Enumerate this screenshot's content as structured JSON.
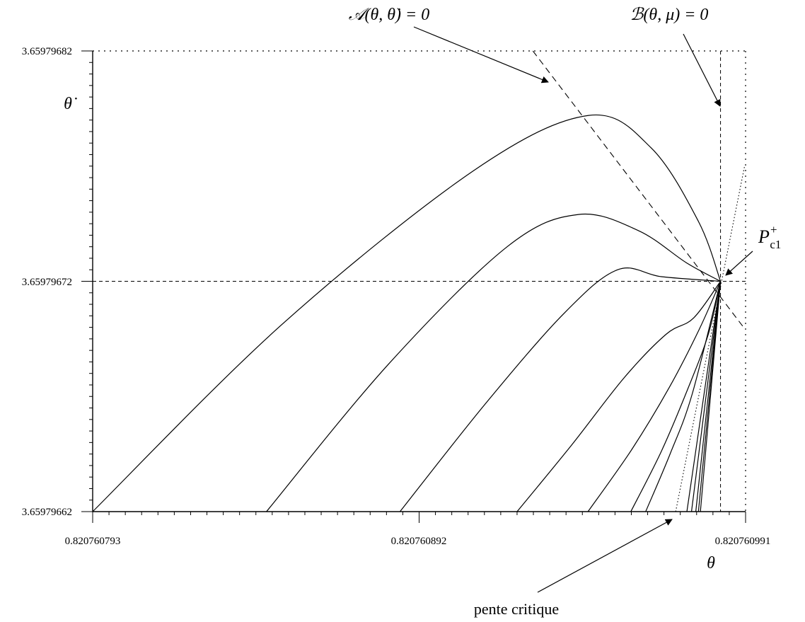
{
  "chart_data": {
    "type": "line",
    "xlabel": "θ",
    "ylabel": "θ̇",
    "xlim": [
      0.820760793,
      0.820760991
    ],
    "ylim": [
      3.65979662,
      3.65979682
    ],
    "x_ticks": [
      "0.820760793",
      "0.820760892",
      "0.820760991"
    ],
    "y_ticks": [
      "3.65979662",
      "3.65979672",
      "3.65979682"
    ],
    "grid": false,
    "critical_point": {
      "label_main": "P",
      "label_sup": "+",
      "label_sub": "c1",
      "x": 0.8207609834,
      "y": 3.65979672
    },
    "reference_lines": [
      {
        "name": "horizontal-at-critical",
        "y": 3.65979672,
        "style": "dashed"
      },
      {
        "name": "B-vertical",
        "x": 0.8207609834,
        "style": "dashed"
      }
    ],
    "annotations": {
      "A": "𝒜(θ, θ̇) = 0",
      "B": "ℬ(θ, μ) = 0",
      "critical_slope": "pente critique"
    },
    "A_line": {
      "from": [
        0.8207609265,
        3.65979682
      ],
      "to": [
        0.8207609904,
        3.6597967
      ]
    },
    "critical_slope_line": {
      "from": [
        0.8207609698,
        3.65979662
      ],
      "to": [
        0.8207609907,
        3.65979677
      ]
    },
    "series": [
      {
        "values": [
          [
            0.820760793,
            3.65979662
          ],
          [
            0.8207608502,
            3.659796701
          ],
          [
            0.8207609085,
            3.659796768
          ],
          [
            0.8207609434,
            3.659796792
          ],
          [
            0.8207609623,
            3.659796778
          ],
          [
            0.8207609767,
            3.659796746
          ],
          [
            0.8207609834,
            3.65979672
          ]
        ]
      },
      {
        "values": [
          [
            0.8207608457,
            3.65979662
          ],
          [
            0.8207608827,
            3.659796684
          ],
          [
            0.8207609187,
            3.659796735
          ],
          [
            0.8207609403,
            3.659796749
          ],
          [
            0.8207609585,
            3.659796742
          ],
          [
            0.8207609731,
            3.659796728
          ],
          [
            0.8207609834,
            3.65979672
          ]
        ]
      },
      {
        "values": [
          [
            0.8207608862,
            3.65979662
          ],
          [
            0.8207609122,
            3.659796667
          ],
          [
            0.8207609359,
            3.659796706
          ],
          [
            0.8207609522,
            3.659796725
          ],
          [
            0.8207609655,
            3.659796722
          ],
          [
            0.8207609834,
            3.65979672
          ]
        ]
      },
      {
        "values": [
          [
            0.8207609217,
            3.65979662
          ],
          [
            0.8207609383,
            3.659796649
          ],
          [
            0.8207609541,
            3.659796678
          ],
          [
            0.8207609669,
            3.659796697
          ],
          [
            0.8207609752,
            3.659796704
          ],
          [
            0.8207609834,
            3.65979672
          ]
        ]
      },
      {
        "values": [
          [
            0.8207609432,
            3.65979662
          ],
          [
            0.8207609565,
            3.659796647
          ],
          [
            0.8207609679,
            3.659796674
          ],
          [
            0.8207609769,
            3.659796699
          ],
          [
            0.8207609834,
            3.65979672
          ]
        ]
      },
      {
        "values": [
          [
            0.8207609562,
            3.65979662
          ],
          [
            0.8207609654,
            3.659796646
          ],
          [
            0.8207609734,
            3.659796673
          ],
          [
            0.8207609797,
            3.659796697
          ],
          [
            0.8207609834,
            3.65979672
          ]
        ]
      },
      {
        "values": [
          [
            0.8207609607,
            3.65979662
          ],
          [
            0.8207609681,
            3.659796645
          ],
          [
            0.8207609748,
            3.659796671
          ],
          [
            0.8207609834,
            3.65979672
          ]
        ]
      },
      {
        "values": [
          [
            0.8207609732,
            3.65979662
          ],
          [
            0.8207609834,
            3.65979672
          ]
        ]
      },
      {
        "values": [
          [
            0.8207609746,
            3.65979662
          ],
          [
            0.8207609834,
            3.65979672
          ]
        ]
      },
      {
        "values": [
          [
            0.8207609759,
            3.65979662
          ],
          [
            0.8207609834,
            3.65979672
          ]
        ]
      },
      {
        "values": [
          [
            0.8207609767,
            3.65979662
          ],
          [
            0.8207609834,
            3.65979672
          ]
        ]
      },
      {
        "values": [
          [
            0.8207609773,
            3.65979662
          ],
          [
            0.8207609834,
            3.65979672
          ]
        ]
      }
    ]
  }
}
